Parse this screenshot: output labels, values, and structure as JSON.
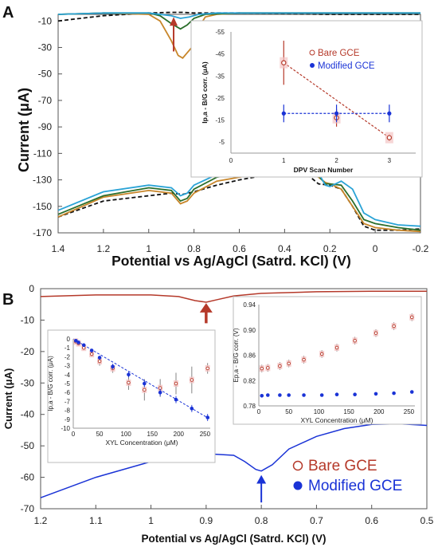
{
  "panels": {
    "a": {
      "letter": "A"
    },
    "b": {
      "letter": "B"
    }
  },
  "colors": {
    "bare": "#b5392a",
    "modified": "#1a33d6",
    "orange": "#c8862a",
    "green": "#2b6e2b",
    "cyan": "#2aa3d6",
    "black": "#111111"
  },
  "chart_data": [
    {
      "id": "A-main",
      "type": "line",
      "xlabel": "Potential vs Ag/AgCl (Satrd. KCl) (V)",
      "ylabel": "Current (μA)",
      "x_ticks": [
        "1.4",
        "1.2",
        "1",
        "0.8",
        "0.6",
        "0.4",
        "0.2",
        "0",
        "-0.2"
      ],
      "y_ticks": [
        "-10",
        "-30",
        "-50",
        "-70",
        "-90",
        "-110",
        "-130",
        "-150",
        "-170"
      ],
      "xlim": [
        1.4,
        -0.2
      ],
      "ylim": [
        -170,
        0
      ],
      "series": [
        {
          "color": "black",
          "dashed": true,
          "x": [
            1.4,
            1.2,
            1.0,
            0.9,
            0.85,
            0.8,
            0.6,
            0.4,
            0.2,
            0.0,
            -0.2
          ],
          "y": [
            -10,
            -6,
            -4,
            -3.5,
            -3.5,
            -4,
            -4,
            -4.5,
            -5,
            -5,
            -5
          ]
        },
        {
          "color": "orange",
          "x": [
            1.4,
            1.2,
            1.0,
            0.95,
            0.9,
            0.87,
            0.85,
            0.8,
            0.78,
            0.75,
            0.7,
            0.6,
            0.4,
            0.2,
            0.0,
            -0.2
          ],
          "y": [
            -5,
            -4,
            -5,
            -10,
            -25,
            -36,
            -38,
            -28,
            -15,
            -7,
            -5,
            -4,
            -4,
            -4,
            -4,
            -4
          ]
        },
        {
          "color": "green",
          "x": [
            1.4,
            1.2,
            1.0,
            0.95,
            0.9,
            0.86,
            0.83,
            0.8,
            0.75,
            0.6,
            0.4,
            0.2,
            0.0,
            -0.2
          ],
          "y": [
            -5,
            -4,
            -4,
            -6,
            -12,
            -16,
            -13,
            -8,
            -5,
            -4,
            -4,
            -4,
            -4,
            -4
          ]
        },
        {
          "color": "cyan",
          "x": [
            1.4,
            1.2,
            1.0,
            0.9,
            0.86,
            0.82,
            0.78,
            0.7,
            0.6,
            0.4,
            0.2,
            0.0,
            -0.2
          ],
          "y": [
            -5,
            -4,
            -4,
            -6,
            -8,
            -7,
            -5,
            -4,
            -4,
            -4,
            -4,
            -4,
            -4
          ]
        },
        {
          "color": "black",
          "dashed": true,
          "x": [
            1.4,
            1.2,
            1.0,
            0.9,
            0.85,
            0.8,
            0.7,
            0.6,
            0.5,
            0.4,
            0.3,
            0.25,
            0.2,
            0.15,
            0.1,
            0.05,
            0.0,
            -0.1,
            -0.2
          ],
          "y": [
            -158,
            -146,
            -142,
            -140,
            -141,
            -139,
            -134,
            -130,
            -127,
            -124,
            -126,
            -133,
            -134,
            -137,
            -150,
            -165,
            -168,
            -168,
            -167
          ]
        },
        {
          "color": "orange",
          "x": [
            1.4,
            1.2,
            1.0,
            0.9,
            0.86,
            0.83,
            0.8,
            0.7,
            0.6,
            0.5,
            0.4,
            0.35,
            0.3,
            0.25,
            0.22,
            0.2,
            0.15,
            0.1,
            0.05,
            0.0,
            -0.1,
            -0.2
          ],
          "y": [
            -158,
            -143,
            -138,
            -140,
            -148,
            -146,
            -140,
            -131,
            -128,
            -125,
            -122,
            -121,
            -123,
            -128,
            -132,
            -133,
            -137,
            -150,
            -163,
            -166,
            -168,
            -169
          ]
        },
        {
          "color": "green",
          "x": [
            1.4,
            1.2,
            1.0,
            0.9,
            0.86,
            0.83,
            0.8,
            0.7,
            0.6,
            0.5,
            0.4,
            0.35,
            0.3,
            0.25,
            0.22,
            0.2,
            0.15,
            0.1,
            0.05,
            0.0,
            -0.1,
            -0.2
          ],
          "y": [
            -156,
            -142,
            -136,
            -138,
            -146,
            -144,
            -137,
            -128,
            -125,
            -122,
            -120,
            -119,
            -121,
            -127,
            -133,
            -133,
            -134,
            -146,
            -160,
            -163,
            -166,
            -168
          ]
        },
        {
          "color": "cyan",
          "x": [
            1.4,
            1.2,
            1.0,
            0.9,
            0.86,
            0.83,
            0.8,
            0.7,
            0.6,
            0.5,
            0.4,
            0.35,
            0.3,
            0.25,
            0.22,
            0.2,
            0.15,
            0.1,
            0.05,
            0.0,
            -0.1,
            -0.2
          ],
          "y": [
            -153,
            -139,
            -134,
            -136,
            -142,
            -140,
            -134,
            -126,
            -122,
            -120,
            -118,
            -117,
            -119,
            -125,
            -134,
            -135,
            -131,
            -137,
            -155,
            -160,
            -164,
            -165
          ]
        }
      ]
    },
    {
      "id": "A-inset",
      "type": "scatter",
      "xlabel": "DPV Scan Number",
      "ylabel": "Ip,a - B/G corr. (μA)",
      "x_ticks": [
        "0",
        "1",
        "2",
        "3"
      ],
      "y_ticks": [
        "-55",
        "-45",
        "-35",
        "-25",
        "-15",
        "-5"
      ],
      "xlim": [
        0,
        3.5
      ],
      "ylim": [
        0,
        -55
      ],
      "legend_position": "top-right",
      "series": [
        {
          "name": "Bare GCE",
          "color": "bare",
          "marker": "open-circle",
          "x": [
            1,
            2,
            3
          ],
          "y": [
            -41,
            -16,
            -7
          ],
          "err": [
            10,
            4,
            1.5
          ]
        },
        {
          "name": "Modified GCE",
          "color": "modified",
          "marker": "filled-circle",
          "x": [
            1,
            2,
            3
          ],
          "y": [
            -18,
            -18,
            -18
          ],
          "err": [
            4,
            4,
            4
          ]
        }
      ]
    },
    {
      "id": "B-main",
      "type": "line",
      "xlabel": "Potential vs Ag/AgCl (Satrd. KCl) (V)",
      "ylabel": "Current (μA)",
      "x_ticks": [
        "1.2",
        "1.1",
        "1",
        "0.9",
        "0.8",
        "0.7",
        "0.6",
        "0.5"
      ],
      "y_ticks": [
        "0",
        "-10",
        "-20",
        "-30",
        "-40",
        "-50",
        "-60",
        "-70"
      ],
      "xlim": [
        1.2,
        0.5
      ],
      "ylim": [
        -70,
        0
      ],
      "legend_position": "bottom-right",
      "series": [
        {
          "name": "Bare GCE",
          "color": "bare",
          "marker": "open-circle",
          "x": [
            1.2,
            1.1,
            1.0,
            0.95,
            0.92,
            0.9,
            0.88,
            0.85,
            0.8,
            0.7,
            0.6,
            0.5
          ],
          "y": [
            -2.5,
            -2.0,
            -2.0,
            -2.5,
            -3.8,
            -4.3,
            -3.5,
            -2.3,
            -1.5,
            -1.0,
            -0.8,
            -0.8
          ]
        },
        {
          "name": "Modified GCE",
          "color": "modified",
          "marker": "filled-circle",
          "x": [
            1.2,
            1.1,
            1.0,
            0.9,
            0.85,
            0.83,
            0.81,
            0.8,
            0.78,
            0.75,
            0.7,
            0.65,
            0.6,
            0.55,
            0.5
          ],
          "y": [
            -66.5,
            -60,
            -55,
            -52.5,
            -53,
            -55,
            -57.5,
            -58,
            -56,
            -51,
            -47,
            -44.5,
            -43.2,
            -43,
            -43.5
          ]
        }
      ]
    },
    {
      "id": "B-inset-left",
      "type": "scatter",
      "xlabel": "XYL Concentration (μM)",
      "ylabel": "Ip,a - B/G corr. (μA)",
      "x_ticks": [
        "0",
        "50",
        "100",
        "150",
        "200",
        "250"
      ],
      "y_ticks": [
        "0",
        "-1",
        "-2",
        "-3",
        "-4",
        "-5",
        "-6",
        "-7",
        "-8",
        "-9",
        "-10"
      ],
      "xlim": [
        0,
        260
      ],
      "ylim": [
        0,
        -10
      ],
      "series": [
        {
          "name": "Bare GCE",
          "color": "bare",
          "marker": "open-circle",
          "x": [
            5,
            10,
            20,
            35,
            50,
            75,
            105,
            135,
            165,
            195,
            225,
            255
          ],
          "y": [
            -0.3,
            -0.5,
            -1.0,
            -1.7,
            -2.5,
            -3.3,
            -4.9,
            -5.7,
            -5.5,
            -5.0,
            -4.6,
            -3.3
          ],
          "err": [
            0.1,
            0.1,
            0.2,
            0.3,
            0.5,
            0.5,
            0.8,
            1.2,
            1.0,
            1.2,
            1.5,
            0.6
          ]
        },
        {
          "name": "Modified GCE",
          "color": "modified",
          "marker": "filled-circle",
          "x": [
            5,
            10,
            20,
            35,
            50,
            75,
            105,
            135,
            165,
            195,
            225,
            255
          ],
          "y": [
            -0.2,
            -0.4,
            -0.7,
            -1.3,
            -2.1,
            -3.1,
            -4.0,
            -5.0,
            -6.0,
            -6.8,
            -7.8,
            -8.8
          ],
          "err": [
            0.1,
            0.1,
            0.1,
            0.2,
            0.2,
            0.3,
            0.3,
            0.4,
            0.4,
            0.4,
            0.4,
            0.4
          ]
        }
      ]
    },
    {
      "id": "B-inset-right",
      "type": "scatter",
      "xlabel": "XYL Concentration (μM)",
      "ylabel": "Ep,a - B/G corr. (V)",
      "x_ticks": [
        "0",
        "50",
        "100",
        "150",
        "200",
        "250"
      ],
      "y_ticks": [
        "0.94",
        "0.90",
        "0.86",
        "0.82",
        "0.78"
      ],
      "xlim": [
        0,
        260
      ],
      "ylim": [
        0.78,
        0.94
      ],
      "series": [
        {
          "name": "Bare GCE",
          "color": "bare",
          "marker": "open-circle",
          "x": [
            5,
            15,
            35,
            50,
            75,
            105,
            130,
            160,
            195,
            225,
            255
          ],
          "y": [
            0.839,
            0.84,
            0.843,
            0.847,
            0.853,
            0.862,
            0.872,
            0.883,
            0.895,
            0.906,
            0.92
          ],
          "err": [
            0.006,
            0.006,
            0.006,
            0.006,
            0.006,
            0.006,
            0.006,
            0.006,
            0.006,
            0.006,
            0.006
          ]
        },
        {
          "name": "Modified GCE",
          "color": "modified",
          "marker": "filled-circle",
          "x": [
            5,
            15,
            35,
            50,
            75,
            105,
            130,
            160,
            195,
            225,
            255
          ],
          "y": [
            0.796,
            0.797,
            0.797,
            0.797,
            0.797,
            0.797,
            0.798,
            0.798,
            0.799,
            0.8,
            0.802
          ],
          "err": [
            0.002,
            0.002,
            0.002,
            0.002,
            0.002,
            0.002,
            0.002,
            0.002,
            0.002,
            0.002,
            0.002
          ]
        }
      ]
    }
  ]
}
